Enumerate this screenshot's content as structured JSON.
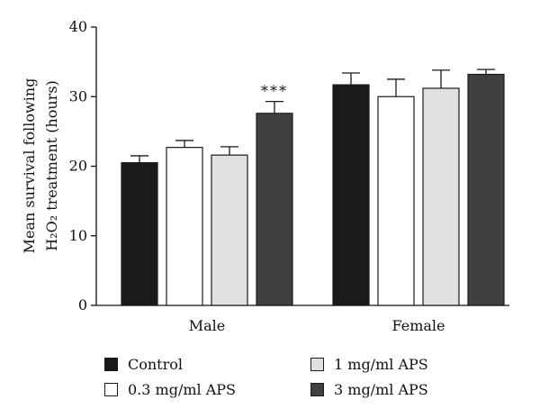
{
  "chart_data": {
    "type": "bar",
    "categories": [
      "Male",
      "Female"
    ],
    "ylabel_line1": "Mean survival following",
    "ylabel_line2": "H₂O₂ treatment (hours)",
    "ylim": [
      0,
      40
    ],
    "yticks": [
      0,
      10,
      20,
      30,
      40
    ],
    "legend_position": "bottom",
    "series": [
      {
        "name": "Control",
        "color": "#1a1a1a",
        "values": [
          20.5,
          31.7
        ],
        "errors": [
          1.0,
          1.7
        ]
      },
      {
        "name": "0.3 mg/ml APS",
        "color": "#ffffff",
        "values": [
          22.7,
          30.0
        ],
        "errors": [
          1.0,
          2.5
        ]
      },
      {
        "name": "1 mg/ml APS",
        "color": "#e0e0e0",
        "values": [
          21.6,
          31.2
        ],
        "errors": [
          1.2,
          2.6
        ]
      },
      {
        "name": "3 mg/ml APS",
        "color": "#404040",
        "values": [
          27.6,
          33.2
        ],
        "errors": [
          1.7,
          0.7
        ]
      }
    ],
    "annotations": [
      {
        "text": "***",
        "series_index": 3,
        "category_index": 0
      }
    ]
  }
}
